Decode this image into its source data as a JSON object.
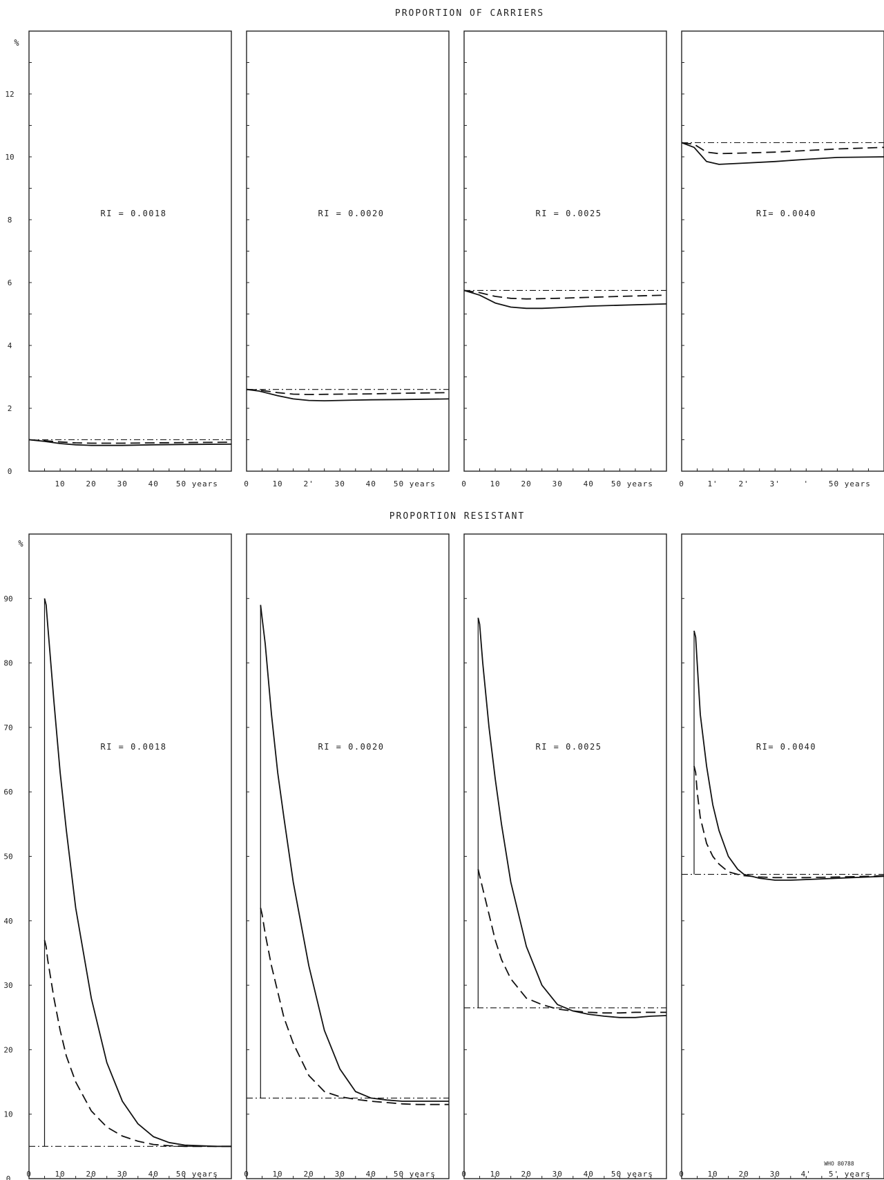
{
  "chart_data": [
    {
      "type": "line",
      "title": "PROPORTION OF CARRIERS",
      "ylabel": "%",
      "y_ticks": [
        "12",
        "10",
        "8",
        "6",
        "4",
        "2",
        "0"
      ],
      "ylim": [
        0,
        14
      ],
      "xlim": [
        0,
        65
      ],
      "panels": [
        {
          "annotation": "RI = 0.0018",
          "x_ticks": [
            "10",
            "20",
            "30",
            "40",
            "50 years"
          ],
          "series": [
            {
              "style": "solid",
              "x": [
                0,
                5,
                10,
                15,
                20,
                30,
                40,
                50,
                65
              ],
              "y": [
                1.0,
                0.95,
                0.88,
                0.84,
                0.82,
                0.82,
                0.84,
                0.85,
                0.86
              ]
            },
            {
              "style": "dashed",
              "x": [
                0,
                5,
                10,
                15,
                20,
                30,
                40,
                50,
                65
              ],
              "y": [
                1.0,
                0.97,
                0.93,
                0.9,
                0.89,
                0.89,
                0.9,
                0.91,
                0.92
              ]
            },
            {
              "style": "dashdot",
              "x": [
                0,
                65
              ],
              "y": [
                1.0,
                1.0
              ]
            }
          ]
        },
        {
          "annotation": "RI = 0.0020",
          "x_ticks": [
            "0",
            "10",
            "2'",
            "30",
            "40",
            "50 years"
          ],
          "series": [
            {
              "style": "solid",
              "x": [
                0,
                4,
                10,
                15,
                20,
                25,
                30,
                40,
                50,
                65
              ],
              "y": [
                2.6,
                2.55,
                2.4,
                2.3,
                2.25,
                2.24,
                2.25,
                2.27,
                2.28,
                2.3
              ]
            },
            {
              "style": "dashed",
              "x": [
                0,
                4,
                10,
                15,
                20,
                30,
                40,
                50,
                65
              ],
              "y": [
                2.6,
                2.58,
                2.5,
                2.45,
                2.44,
                2.45,
                2.46,
                2.48,
                2.5
              ]
            },
            {
              "style": "dashdot",
              "x": [
                0,
                65
              ],
              "y": [
                2.6,
                2.6
              ]
            }
          ]
        },
        {
          "annotation": "RI = 0.0025",
          "x_ticks": [
            "0",
            "10",
            "20",
            "30",
            "40",
            "50 years"
          ],
          "series": [
            {
              "style": "solid",
              "x": [
                0,
                5,
                10,
                15,
                20,
                25,
                30,
                40,
                50,
                65
              ],
              "y": [
                5.75,
                5.6,
                5.35,
                5.22,
                5.18,
                5.18,
                5.2,
                5.25,
                5.28,
                5.32
              ]
            },
            {
              "style": "dashed",
              "x": [
                0,
                5,
                10,
                15,
                20,
                30,
                40,
                50,
                65
              ],
              "y": [
                5.75,
                5.68,
                5.56,
                5.5,
                5.48,
                5.5,
                5.53,
                5.56,
                5.6
              ]
            },
            {
              "style": "dashdot",
              "x": [
                0,
                65
              ],
              "y": [
                5.75,
                5.75
              ]
            }
          ]
        },
        {
          "annotation": "RI= 0.0040",
          "x_ticks": [
            "0",
            "1'",
            "2'",
            "3'",
            "'",
            "50 years"
          ],
          "series": [
            {
              "style": "solid",
              "x": [
                0,
                4,
                8,
                12,
                16,
                20,
                30,
                40,
                50,
                65
              ],
              "y": [
                10.45,
                10.3,
                9.85,
                9.76,
                9.78,
                9.8,
                9.85,
                9.92,
                9.98,
                10.0
              ]
            },
            {
              "style": "dashed",
              "x": [
                0,
                4,
                8,
                12,
                20,
                30,
                40,
                50,
                65
              ],
              "y": [
                10.45,
                10.4,
                10.15,
                10.1,
                10.12,
                10.15,
                10.2,
                10.25,
                10.3
              ]
            },
            {
              "style": "dashdot",
              "x": [
                0,
                65
              ],
              "y": [
                10.45,
                10.45
              ]
            }
          ]
        }
      ]
    },
    {
      "type": "line",
      "title": "PROPORTION RESISTANT",
      "ylabel": "%",
      "y_ticks": [
        "90",
        "80",
        "70",
        "60",
        "50",
        "40",
        "30",
        "20",
        "10",
        "0"
      ],
      "ylim": [
        0,
        100
      ],
      "xlim": [
        0,
        65
      ],
      "panels": [
        {
          "annotation": "RI = 0.0018",
          "x_ticks": [
            "0",
            "10",
            "20",
            "30",
            "40",
            "50 years"
          ],
          "series": [
            {
              "style": "solid",
              "x": [
                5,
                5.5,
                6,
                8,
                10,
                12,
                15,
                20,
                25,
                30,
                35,
                40,
                45,
                50,
                55,
                60,
                65
              ],
              "y": [
                90,
                89,
                86,
                74,
                63,
                54,
                42,
                28,
                18,
                12,
                8.5,
                6.5,
                5.6,
                5.2,
                5.1,
                5.0,
                5.0
              ]
            },
            {
              "style": "dashed",
              "x": [
                5,
                5.5,
                6,
                8,
                10,
                12,
                15,
                20,
                25,
                30,
                35,
                40,
                45,
                50,
                55,
                60,
                65
              ],
              "y": [
                37,
                36,
                34,
                28,
                23,
                19,
                15,
                10.5,
                8,
                6.6,
                5.8,
                5.3,
                5.1,
                5.0,
                5.0,
                5.0,
                5.0
              ]
            },
            {
              "style": "dashdot",
              "x": [
                0,
                65
              ],
              "y": [
                5.0,
                5.0
              ]
            },
            {
              "style": "step",
              "x": [
                5,
                5
              ],
              "y": [
                5.0,
                90
              ]
            }
          ]
        },
        {
          "annotation": "RI = 0.0020",
          "x_ticks": [
            "0",
            "10",
            "20",
            "30",
            "40",
            "50 years"
          ],
          "series": [
            {
              "style": "solid",
              "x": [
                4.5,
                5,
                6,
                8,
                10,
                12,
                15,
                20,
                25,
                30,
                35,
                40,
                45,
                50,
                55,
                60,
                65
              ],
              "y": [
                89,
                87,
                83,
                72,
                63,
                56,
                46,
                33,
                23,
                17,
                13.5,
                12.5,
                12.2,
                12.0,
                12.0,
                12.0,
                12.0
              ]
            },
            {
              "style": "dashed",
              "x": [
                4.5,
                5,
                6,
                8,
                10,
                12,
                15,
                20,
                25,
                30,
                35,
                40,
                45,
                50,
                55,
                60,
                65
              ],
              "y": [
                42,
                41,
                38,
                33,
                29,
                25,
                21,
                16,
                13.5,
                12.7,
                12.3,
                12.0,
                11.8,
                11.6,
                11.5,
                11.5,
                11.5
              ]
            },
            {
              "style": "dashdot",
              "x": [
                0,
                65
              ],
              "y": [
                12.5,
                12.5
              ]
            },
            {
              "style": "step",
              "x": [
                4.5,
                4.5
              ],
              "y": [
                12.5,
                89
              ]
            }
          ]
        },
        {
          "annotation": "RI = 0.0025",
          "x_ticks": [
            "0",
            "10",
            "20",
            "30",
            "40",
            "50 years"
          ],
          "series": [
            {
              "style": "solid",
              "x": [
                4.5,
                5,
                6,
                8,
                10,
                12,
                15,
                20,
                25,
                30,
                35,
                40,
                45,
                50,
                55,
                60,
                65
              ],
              "y": [
                87,
                86,
                80,
                70,
                62,
                55,
                46,
                36,
                30,
                27,
                26,
                25.5,
                25.2,
                25.0,
                25.0,
                25.2,
                25.3
              ]
            },
            {
              "style": "dashed",
              "x": [
                4.5,
                5,
                6,
                8,
                10,
                12,
                15,
                20,
                25,
                30,
                35,
                40,
                45,
                50,
                55,
                60,
                65
              ],
              "y": [
                48,
                47,
                45,
                41,
                37,
                34,
                31,
                28,
                27,
                26.3,
                26,
                25.8,
                25.7,
                25.7,
                25.8,
                25.8,
                25.8
              ]
            },
            {
              "style": "dashdot",
              "x": [
                0,
                65
              ],
              "y": [
                26.5,
                26.5
              ]
            },
            {
              "style": "step",
              "x": [
                4.5,
                4.5
              ],
              "y": [
                26.5,
                87
              ]
            }
          ]
        },
        {
          "annotation": "RI= 0.0040",
          "x_ticks": [
            "0",
            "10",
            "20",
            "30",
            "4'",
            "5' years"
          ],
          "series": [
            {
              "style": "solid",
              "x": [
                4,
                4.5,
                5,
                6,
                8,
                10,
                12,
                15,
                18,
                20,
                25,
                30,
                35,
                40,
                50,
                60,
                65
              ],
              "y": [
                85,
                84,
                80,
                72,
                64,
                58,
                54,
                50,
                48,
                47.2,
                46.6,
                46.3,
                46.3,
                46.4,
                46.6,
                46.8,
                46.9
              ]
            },
            {
              "style": "dashed",
              "x": [
                4,
                4.5,
                5,
                6,
                8,
                10,
                12,
                15,
                18,
                20,
                25,
                30,
                40,
                50,
                60,
                65
              ],
              "y": [
                64,
                63,
                60,
                56,
                52,
                50,
                48.8,
                47.6,
                47.2,
                47,
                46.8,
                46.7,
                46.7,
                46.8,
                46.9,
                47.0
              ]
            },
            {
              "style": "dashdot",
              "x": [
                0,
                65
              ],
              "y": [
                47.2,
                47.2
              ]
            },
            {
              "style": "step",
              "x": [
                4,
                4
              ],
              "y": [
                47.2,
                85
              ]
            }
          ]
        }
      ],
      "footnote": "WHO 80788"
    }
  ]
}
